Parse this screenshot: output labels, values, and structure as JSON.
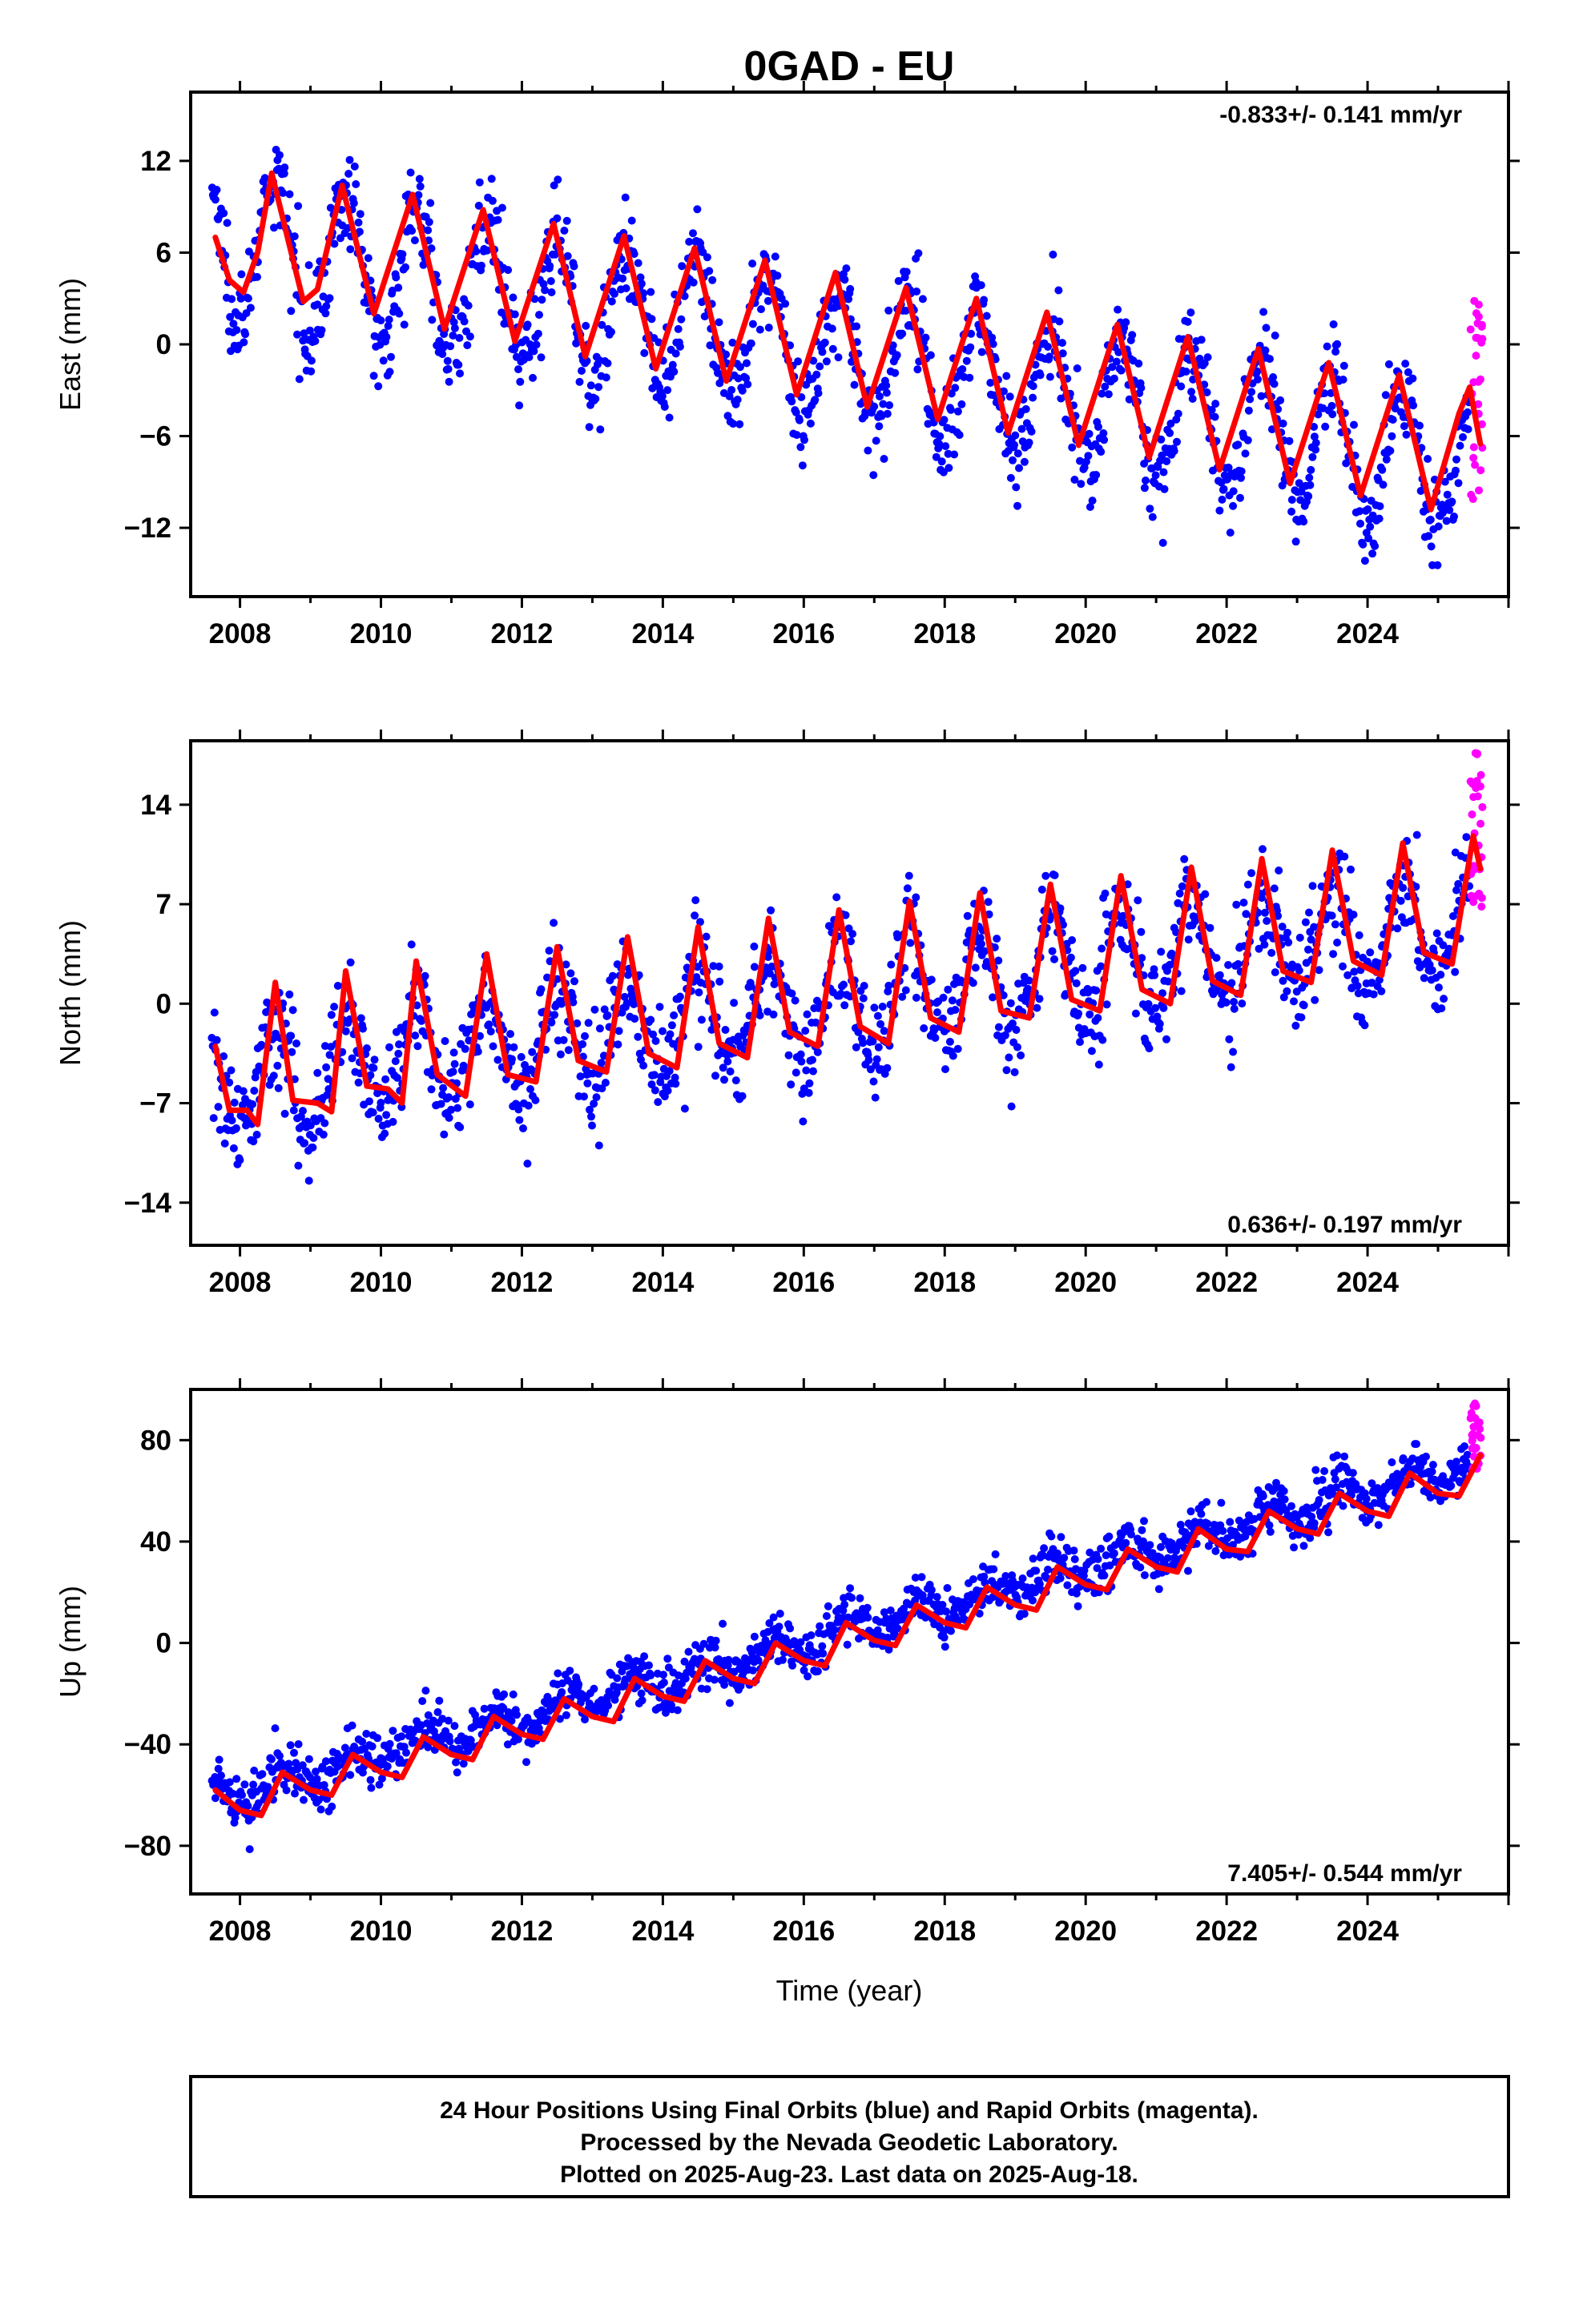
{
  "title": "0GAD - EU",
  "colors": {
    "final_orbits": "#0000ff",
    "rapid_orbits": "#ff00ff",
    "model_fit": "#ff0000",
    "frame": "#000000"
  },
  "xlabel": "Time (year)",
  "footer": {
    "line1": "24 Hour Positions Using Final Orbits (blue) and Rapid Orbits (magenta).",
    "line2": "Processed by the Nevada Geodetic Laboratory.",
    "line3": "Plotted on 2025-Aug-23. Last data on 2025-Aug-18."
  },
  "chart_data": [
    {
      "type": "scatter",
      "component": "east",
      "ylabel": "East (mm)",
      "rate_text": "-0.833+/- 0.141 mm/yr",
      "xlim": [
        2007.3,
        2026.0
      ],
      "ylim": [
        -16.5,
        16.5
      ],
      "x_ticks": [
        2008,
        2010,
        2012,
        2014,
        2016,
        2018,
        2020,
        2022,
        2024
      ],
      "x_tick_labels": [
        "2008",
        "2010",
        "2012",
        "2014",
        "2016",
        "2018",
        "2020",
        "2022",
        "2024"
      ],
      "y_ticks": [
        -12,
        -6,
        0,
        6,
        12
      ],
      "y_tick_labels": [
        "−12",
        "−6",
        "0",
        "6",
        "12"
      ],
      "series": [
        {
          "role": "final",
          "model": {
            "offset": 6.8,
            "rate": -0.833,
            "amp": 4.4,
            "peak_phase": 0.5,
            "ref_year": 2007.6,
            "scatter": 1.6
          },
          "x_range": [
            2007.6,
            2025.45
          ]
        },
        {
          "role": "rapid",
          "x_range": [
            2025.45,
            2025.63
          ],
          "y_range": [
            -12,
            3
          ]
        }
      ],
      "fit_points": [
        {
          "x": 2007.65,
          "y": 7.0
        },
        {
          "x": 2007.85,
          "y": 4.2
        },
        {
          "x": 2008.05,
          "y": 3.4
        },
        {
          "x": 2008.25,
          "y": 6.0
        },
        {
          "x": 2008.45,
          "y": 11.2
        },
        {
          "x": 2008.7,
          "y": 6.5
        },
        {
          "x": 2008.9,
          "y": 2.8
        },
        {
          "x": 2009.1,
          "y": 3.6
        },
        {
          "x": 2009.45,
          "y": 10.4
        },
        {
          "x": 2009.9,
          "y": 2.0
        },
        {
          "x": 2010.45,
          "y": 9.8
        },
        {
          "x": 2010.9,
          "y": 1.0
        },
        {
          "x": 2011.45,
          "y": 8.8
        },
        {
          "x": 2011.9,
          "y": 0.2
        },
        {
          "x": 2012.45,
          "y": 7.9
        },
        {
          "x": 2012.9,
          "y": -0.8
        },
        {
          "x": 2013.45,
          "y": 7.1
        },
        {
          "x": 2013.9,
          "y": -1.6
        },
        {
          "x": 2014.45,
          "y": 6.3
        },
        {
          "x": 2014.9,
          "y": -2.4
        },
        {
          "x": 2015.45,
          "y": 5.5
        },
        {
          "x": 2015.9,
          "y": -3.3
        },
        {
          "x": 2016.45,
          "y": 4.7
        },
        {
          "x": 2016.9,
          "y": -4.1
        },
        {
          "x": 2017.45,
          "y": 3.7
        },
        {
          "x": 2017.9,
          "y": -4.9
        },
        {
          "x": 2018.45,
          "y": 3.0
        },
        {
          "x": 2018.9,
          "y": -5.8
        },
        {
          "x": 2019.45,
          "y": 2.1
        },
        {
          "x": 2019.9,
          "y": -6.6
        },
        {
          "x": 2020.45,
          "y": 1.3
        },
        {
          "x": 2020.9,
          "y": -7.4
        },
        {
          "x": 2021.45,
          "y": 0.5
        },
        {
          "x": 2021.9,
          "y": -8.2
        },
        {
          "x": 2022.45,
          "y": -0.3
        },
        {
          "x": 2022.9,
          "y": -9.1
        },
        {
          "x": 2023.45,
          "y": -1.2
        },
        {
          "x": 2023.9,
          "y": -9.9
        },
        {
          "x": 2024.45,
          "y": -2.0
        },
        {
          "x": 2024.9,
          "y": -10.8
        },
        {
          "x": 2025.3,
          "y": -4.5
        },
        {
          "x": 2025.45,
          "y": -2.8
        },
        {
          "x": 2025.6,
          "y": -6.5
        }
      ]
    },
    {
      "type": "scatter",
      "component": "north",
      "ylabel": "North (mm)",
      "rate_text": "0.636+/- 0.197 mm/yr",
      "xlim": [
        2007.3,
        2026.0
      ],
      "ylim": [
        -17,
        18.5
      ],
      "x_ticks": [
        2008,
        2010,
        2012,
        2014,
        2016,
        2018,
        2020,
        2022,
        2024
      ],
      "x_tick_labels": [
        "2008",
        "2010",
        "2012",
        "2014",
        "2016",
        "2018",
        "2020",
        "2022",
        "2024"
      ],
      "y_ticks": [
        -14,
        -7,
        0,
        7,
        14
      ],
      "y_tick_labels": [
        "−14",
        "−7",
        "0",
        "7",
        "14"
      ],
      "series": [
        {
          "role": "final",
          "model": {
            "offset": -5.5,
            "rate": 0.636,
            "amp": 3.6,
            "peak_phase": 0.5,
            "ref_year": 2007.6,
            "scatter": 1.9
          },
          "x_range": [
            2007.6,
            2025.45
          ]
        },
        {
          "role": "rapid",
          "x_range": [
            2025.45,
            2025.63
          ],
          "y_range": [
            6.5,
            18
          ]
        }
      ],
      "fit_points": [
        {
          "x": 2007.65,
          "y": -3.0
        },
        {
          "x": 2007.85,
          "y": -7.5
        },
        {
          "x": 2008.1,
          "y": -7.5
        },
        {
          "x": 2008.25,
          "y": -8.5
        },
        {
          "x": 2008.5,
          "y": 1.5
        },
        {
          "x": 2008.75,
          "y": -6.8
        },
        {
          "x": 2009.1,
          "y": -7.0
        },
        {
          "x": 2009.3,
          "y": -7.6
        },
        {
          "x": 2009.5,
          "y": 2.3
        },
        {
          "x": 2009.8,
          "y": -5.8
        },
        {
          "x": 2010.1,
          "y": -6.0
        },
        {
          "x": 2010.3,
          "y": -7.0
        },
        {
          "x": 2010.5,
          "y": 3.0
        },
        {
          "x": 2010.8,
          "y": -5.0
        },
        {
          "x": 2011.2,
          "y": -6.5
        },
        {
          "x": 2011.5,
          "y": 3.5
        },
        {
          "x": 2011.8,
          "y": -5.0
        },
        {
          "x": 2012.2,
          "y": -5.5
        },
        {
          "x": 2012.5,
          "y": 4.0
        },
        {
          "x": 2012.8,
          "y": -4.0
        },
        {
          "x": 2013.2,
          "y": -4.8
        },
        {
          "x": 2013.5,
          "y": 4.7
        },
        {
          "x": 2013.8,
          "y": -3.5
        },
        {
          "x": 2014.2,
          "y": -4.5
        },
        {
          "x": 2014.5,
          "y": 5.4
        },
        {
          "x": 2014.8,
          "y": -2.8
        },
        {
          "x": 2015.2,
          "y": -3.8
        },
        {
          "x": 2015.5,
          "y": 6.0
        },
        {
          "x": 2015.8,
          "y": -2.0
        },
        {
          "x": 2016.2,
          "y": -3.0
        },
        {
          "x": 2016.5,
          "y": 6.6
        },
        {
          "x": 2016.8,
          "y": -1.6
        },
        {
          "x": 2017.2,
          "y": -2.8
        },
        {
          "x": 2017.5,
          "y": 7.2
        },
        {
          "x": 2017.8,
          "y": -1.0
        },
        {
          "x": 2018.2,
          "y": -2.0
        },
        {
          "x": 2018.5,
          "y": 7.8
        },
        {
          "x": 2018.8,
          "y": -0.5
        },
        {
          "x": 2019.2,
          "y": -1.0
        },
        {
          "x": 2019.5,
          "y": 8.4
        },
        {
          "x": 2019.8,
          "y": 0.3
        },
        {
          "x": 2020.2,
          "y": -0.5
        },
        {
          "x": 2020.5,
          "y": 9.0
        },
        {
          "x": 2020.8,
          "y": 1.0
        },
        {
          "x": 2021.2,
          "y": 0.0
        },
        {
          "x": 2021.5,
          "y": 9.6
        },
        {
          "x": 2021.8,
          "y": 1.6
        },
        {
          "x": 2022.2,
          "y": 0.6
        },
        {
          "x": 2022.5,
          "y": 10.2
        },
        {
          "x": 2022.8,
          "y": 2.3
        },
        {
          "x": 2023.2,
          "y": 1.5
        },
        {
          "x": 2023.5,
          "y": 10.8
        },
        {
          "x": 2023.8,
          "y": 3.0
        },
        {
          "x": 2024.2,
          "y": 2.0
        },
        {
          "x": 2024.5,
          "y": 11.3
        },
        {
          "x": 2024.8,
          "y": 3.6
        },
        {
          "x": 2025.2,
          "y": 2.8
        },
        {
          "x": 2025.5,
          "y": 11.8
        },
        {
          "x": 2025.6,
          "y": 9.5
        }
      ]
    },
    {
      "type": "scatter",
      "component": "up",
      "ylabel": "Up (mm)",
      "rate_text": "7.405+/- 0.544 mm/yr",
      "xlim": [
        2007.3,
        2026.0
      ],
      "ylim": [
        -99,
        100
      ],
      "x_ticks": [
        2008,
        2010,
        2012,
        2014,
        2016,
        2018,
        2020,
        2022,
        2024
      ],
      "x_tick_labels": [
        "2008",
        "2010",
        "2012",
        "2014",
        "2016",
        "2018",
        "2020",
        "2022",
        "2024"
      ],
      "y_ticks": [
        -80,
        -40,
        0,
        40,
        80
      ],
      "y_tick_labels": [
        "−80",
        "−40",
        "0",
        "40",
        "80"
      ],
      "series": [
        {
          "role": "final",
          "model": {
            "offset": -62,
            "rate": 7.405,
            "amp": 5.5,
            "peak_phase": 0.6,
            "ref_year": 2007.6,
            "scatter": 5.0
          },
          "x_range": [
            2007.6,
            2025.45
          ]
        },
        {
          "role": "rapid",
          "x_range": [
            2025.45,
            2025.63
          ],
          "y_range": [
            68,
            95
          ]
        }
      ],
      "fit_points": [
        {
          "x": 2007.65,
          "y": -58
        },
        {
          "x": 2008.0,
          "y": -66
        },
        {
          "x": 2008.3,
          "y": -68
        },
        {
          "x": 2008.6,
          "y": -51
        },
        {
          "x": 2009.0,
          "y": -58
        },
        {
          "x": 2009.3,
          "y": -60
        },
        {
          "x": 2009.6,
          "y": -44
        },
        {
          "x": 2010.0,
          "y": -51
        },
        {
          "x": 2010.3,
          "y": -53
        },
        {
          "x": 2010.6,
          "y": -37
        },
        {
          "x": 2011.0,
          "y": -44
        },
        {
          "x": 2011.3,
          "y": -46
        },
        {
          "x": 2011.6,
          "y": -29
        },
        {
          "x": 2012.0,
          "y": -36
        },
        {
          "x": 2012.3,
          "y": -38
        },
        {
          "x": 2012.6,
          "y": -22
        },
        {
          "x": 2013.0,
          "y": -29
        },
        {
          "x": 2013.3,
          "y": -31
        },
        {
          "x": 2013.6,
          "y": -14
        },
        {
          "x": 2014.0,
          "y": -21
        },
        {
          "x": 2014.3,
          "y": -23
        },
        {
          "x": 2014.6,
          "y": -7
        },
        {
          "x": 2015.0,
          "y": -14
        },
        {
          "x": 2015.3,
          "y": -16
        },
        {
          "x": 2015.6,
          "y": 0
        },
        {
          "x": 2016.0,
          "y": -7
        },
        {
          "x": 2016.3,
          "y": -9
        },
        {
          "x": 2016.6,
          "y": 8
        },
        {
          "x": 2017.0,
          "y": 1
        },
        {
          "x": 2017.3,
          "y": -1
        },
        {
          "x": 2017.6,
          "y": 15
        },
        {
          "x": 2018.0,
          "y": 8
        },
        {
          "x": 2018.3,
          "y": 6
        },
        {
          "x": 2018.6,
          "y": 22
        },
        {
          "x": 2019.0,
          "y": 15
        },
        {
          "x": 2019.3,
          "y": 13
        },
        {
          "x": 2019.6,
          "y": 30
        },
        {
          "x": 2020.0,
          "y": 23
        },
        {
          "x": 2020.3,
          "y": 21
        },
        {
          "x": 2020.6,
          "y": 37
        },
        {
          "x": 2021.0,
          "y": 30
        },
        {
          "x": 2021.3,
          "y": 28
        },
        {
          "x": 2021.6,
          "y": 45
        },
        {
          "x": 2022.0,
          "y": 37
        },
        {
          "x": 2022.3,
          "y": 36
        },
        {
          "x": 2022.6,
          "y": 52
        },
        {
          "x": 2023.0,
          "y": 45
        },
        {
          "x": 2023.3,
          "y": 43
        },
        {
          "x": 2023.6,
          "y": 59
        },
        {
          "x": 2024.0,
          "y": 52
        },
        {
          "x": 2024.3,
          "y": 50
        },
        {
          "x": 2024.6,
          "y": 67
        },
        {
          "x": 2025.0,
          "y": 59
        },
        {
          "x": 2025.3,
          "y": 58
        },
        {
          "x": 2025.6,
          "y": 74
        }
      ]
    }
  ]
}
